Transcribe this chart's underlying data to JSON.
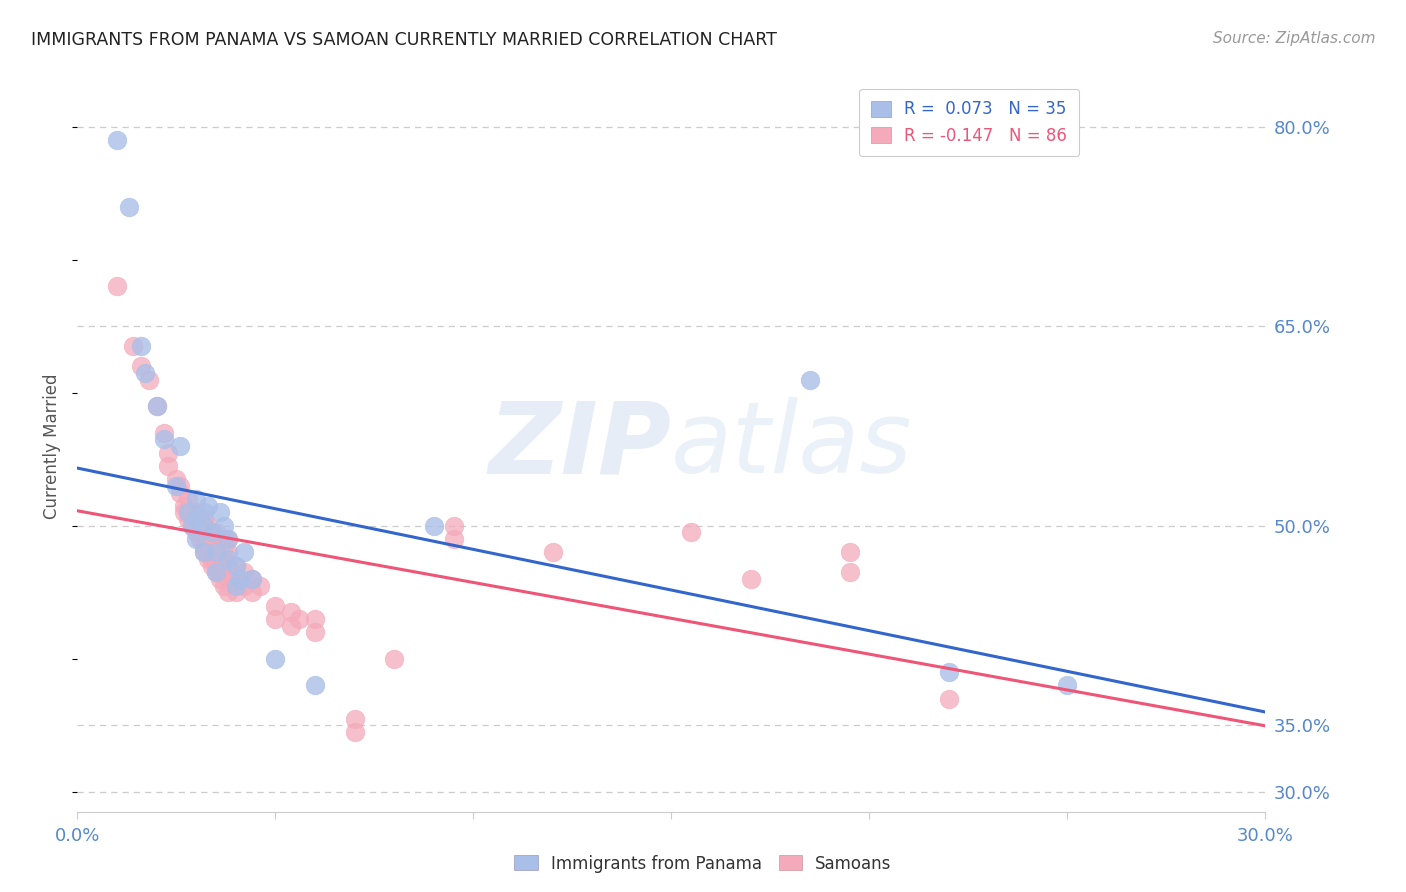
{
  "title": "IMMIGRANTS FROM PANAMA VS SAMOAN CURRENTLY MARRIED CORRELATION CHART",
  "source": "Source: ZipAtlas.com",
  "ylabel": "Currently Married",
  "ylabel_right_ticks": [
    30.0,
    35.0,
    50.0,
    65.0,
    80.0
  ],
  "xmin": 0.0,
  "xmax": 0.3,
  "ymin": 0.285,
  "ymax": 0.835,
  "color_panama": "#AABFE8",
  "color_samoan": "#F4AABB",
  "color_line_panama": "#3366CC",
  "color_line_samoan": "#EE5577",
  "watermark": "ZIPatlas",
  "panama_points": [
    [
      0.01,
      0.79
    ],
    [
      0.013,
      0.74
    ],
    [
      0.016,
      0.635
    ],
    [
      0.017,
      0.615
    ],
    [
      0.02,
      0.59
    ],
    [
      0.022,
      0.565
    ],
    [
      0.025,
      0.53
    ],
    [
      0.026,
      0.56
    ],
    [
      0.028,
      0.51
    ],
    [
      0.029,
      0.5
    ],
    [
      0.03,
      0.52
    ],
    [
      0.03,
      0.505
    ],
    [
      0.03,
      0.49
    ],
    [
      0.032,
      0.5
    ],
    [
      0.032,
      0.48
    ],
    [
      0.032,
      0.51
    ],
    [
      0.033,
      0.515
    ],
    [
      0.034,
      0.495
    ],
    [
      0.035,
      0.48
    ],
    [
      0.035,
      0.465
    ],
    [
      0.036,
      0.51
    ],
    [
      0.037,
      0.5
    ],
    [
      0.038,
      0.49
    ],
    [
      0.038,
      0.475
    ],
    [
      0.04,
      0.47
    ],
    [
      0.04,
      0.455
    ],
    [
      0.041,
      0.46
    ],
    [
      0.042,
      0.48
    ],
    [
      0.044,
      0.46
    ],
    [
      0.05,
      0.4
    ],
    [
      0.06,
      0.38
    ],
    [
      0.09,
      0.5
    ],
    [
      0.185,
      0.61
    ],
    [
      0.22,
      0.39
    ],
    [
      0.25,
      0.38
    ]
  ],
  "samoan_points": [
    [
      0.01,
      0.68
    ],
    [
      0.014,
      0.635
    ],
    [
      0.016,
      0.62
    ],
    [
      0.018,
      0.61
    ],
    [
      0.02,
      0.59
    ],
    [
      0.022,
      0.57
    ],
    [
      0.023,
      0.555
    ],
    [
      0.023,
      0.545
    ],
    [
      0.025,
      0.535
    ],
    [
      0.026,
      0.53
    ],
    [
      0.026,
      0.525
    ],
    [
      0.027,
      0.515
    ],
    [
      0.027,
      0.51
    ],
    [
      0.028,
      0.52
    ],
    [
      0.028,
      0.51
    ],
    [
      0.028,
      0.505
    ],
    [
      0.029,
      0.51
    ],
    [
      0.029,
      0.505
    ],
    [
      0.029,
      0.5
    ],
    [
      0.03,
      0.51
    ],
    [
      0.03,
      0.5
    ],
    [
      0.03,
      0.495
    ],
    [
      0.031,
      0.505
    ],
    [
      0.031,
      0.495
    ],
    [
      0.031,
      0.49
    ],
    [
      0.032,
      0.505
    ],
    [
      0.032,
      0.5
    ],
    [
      0.032,
      0.495
    ],
    [
      0.032,
      0.49
    ],
    [
      0.032,
      0.485
    ],
    [
      0.032,
      0.48
    ],
    [
      0.033,
      0.5
    ],
    [
      0.033,
      0.495
    ],
    [
      0.033,
      0.49
    ],
    [
      0.033,
      0.485
    ],
    [
      0.033,
      0.48
    ],
    [
      0.033,
      0.475
    ],
    [
      0.034,
      0.495
    ],
    [
      0.034,
      0.49
    ],
    [
      0.034,
      0.485
    ],
    [
      0.034,
      0.48
    ],
    [
      0.034,
      0.475
    ],
    [
      0.034,
      0.47
    ],
    [
      0.035,
      0.495
    ],
    [
      0.035,
      0.49
    ],
    [
      0.035,
      0.48
    ],
    [
      0.035,
      0.475
    ],
    [
      0.035,
      0.465
    ],
    [
      0.036,
      0.49
    ],
    [
      0.036,
      0.48
    ],
    [
      0.036,
      0.47
    ],
    [
      0.036,
      0.46
    ],
    [
      0.037,
      0.49
    ],
    [
      0.037,
      0.485
    ],
    [
      0.037,
      0.475
    ],
    [
      0.037,
      0.465
    ],
    [
      0.037,
      0.455
    ],
    [
      0.038,
      0.49
    ],
    [
      0.038,
      0.48
    ],
    [
      0.038,
      0.47
    ],
    [
      0.038,
      0.46
    ],
    [
      0.038,
      0.45
    ],
    [
      0.04,
      0.47
    ],
    [
      0.04,
      0.46
    ],
    [
      0.04,
      0.45
    ],
    [
      0.042,
      0.465
    ],
    [
      0.042,
      0.455
    ],
    [
      0.044,
      0.46
    ],
    [
      0.044,
      0.45
    ],
    [
      0.046,
      0.455
    ],
    [
      0.05,
      0.44
    ],
    [
      0.05,
      0.43
    ],
    [
      0.054,
      0.435
    ],
    [
      0.054,
      0.425
    ],
    [
      0.056,
      0.43
    ],
    [
      0.06,
      0.43
    ],
    [
      0.06,
      0.42
    ],
    [
      0.07,
      0.355
    ],
    [
      0.07,
      0.345
    ],
    [
      0.08,
      0.4
    ],
    [
      0.095,
      0.5
    ],
    [
      0.095,
      0.49
    ],
    [
      0.12,
      0.48
    ],
    [
      0.155,
      0.495
    ],
    [
      0.17,
      0.46
    ],
    [
      0.195,
      0.48
    ],
    [
      0.195,
      0.465
    ],
    [
      0.22,
      0.37
    ]
  ],
  "background_color": "#FFFFFF",
  "grid_color": "#CCCCCC",
  "title_color": "#222222",
  "tick_label_color": "#5588CC",
  "right_tick_color": "#5588CC"
}
